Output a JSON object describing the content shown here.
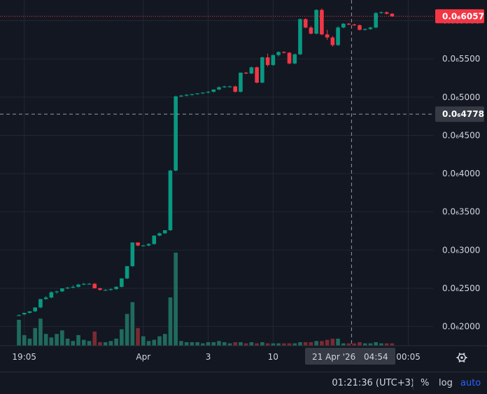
{
  "chart_data": {
    "type": "candlestick",
    "y_tick_labels": [
      "0.0₆2000",
      "0.0₆2500",
      "0.0₆3000",
      "0.0₆3500",
      "0.0₆4000",
      "0.0₆4500",
      "0.0₆5000",
      "0.0₆5500",
      "0.0₆6000"
    ],
    "y_tick_values": [
      0.2,
      0.25,
      0.3,
      0.35,
      0.4,
      0.45,
      0.5,
      0.55,
      0.6
    ],
    "ylim": [
      0.175,
      0.627
    ],
    "x_tick_labels": [
      "19:05",
      "Apr",
      "3",
      "10",
      "00:05"
    ],
    "x_tick_index": [
      1,
      23,
      35,
      47,
      72
    ],
    "candle_count": 70,
    "candles": [
      [
        0.215,
        0.216,
        0.214,
        0.215
      ],
      [
        0.216,
        0.218,
        0.215,
        0.218
      ],
      [
        0.218,
        0.22,
        0.217,
        0.22
      ],
      [
        0.22,
        0.225,
        0.219,
        0.225
      ],
      [
        0.225,
        0.236,
        0.224,
        0.236
      ],
      [
        0.236,
        0.24,
        0.235,
        0.238
      ],
      [
        0.238,
        0.246,
        0.237,
        0.245
      ],
      [
        0.245,
        0.247,
        0.243,
        0.246
      ],
      [
        0.246,
        0.25,
        0.245,
        0.25
      ],
      [
        0.25,
        0.252,
        0.249,
        0.251
      ],
      [
        0.251,
        0.254,
        0.25,
        0.252
      ],
      [
        0.252,
        0.256,
        0.251,
        0.255
      ],
      [
        0.255,
        0.257,
        0.254,
        0.256
      ],
      [
        0.256,
        0.257,
        0.255,
        0.256
      ],
      [
        0.256,
        0.257,
        0.25,
        0.25
      ],
      [
        0.25,
        0.251,
        0.247,
        0.248
      ],
      [
        0.248,
        0.249,
        0.247,
        0.248
      ],
      [
        0.248,
        0.25,
        0.247,
        0.249
      ],
      [
        0.249,
        0.253,
        0.248,
        0.252
      ],
      [
        0.252,
        0.263,
        0.251,
        0.263
      ],
      [
        0.263,
        0.279,
        0.262,
        0.279
      ],
      [
        0.279,
        0.31,
        0.278,
        0.31
      ],
      [
        0.31,
        0.31,
        0.305,
        0.306
      ],
      [
        0.306,
        0.307,
        0.305,
        0.306
      ],
      [
        0.306,
        0.309,
        0.305,
        0.308
      ],
      [
        0.308,
        0.319,
        0.307,
        0.319
      ],
      [
        0.319,
        0.323,
        0.318,
        0.322
      ],
      [
        0.322,
        0.326,
        0.321,
        0.326
      ],
      [
        0.326,
        0.405,
        0.325,
        0.404
      ],
      [
        0.404,
        0.502,
        0.403,
        0.501
      ],
      [
        0.501,
        0.503,
        0.5,
        0.502
      ],
      [
        0.502,
        0.504,
        0.501,
        0.503
      ],
      [
        0.503,
        0.504,
        0.502,
        0.504
      ],
      [
        0.504,
        0.505,
        0.503,
        0.505
      ],
      [
        0.505,
        0.506,
        0.504,
        0.506
      ],
      [
        0.506,
        0.508,
        0.505,
        0.507
      ],
      [
        0.507,
        0.51,
        0.506,
        0.51
      ],
      [
        0.51,
        0.514,
        0.509,
        0.513
      ],
      [
        0.513,
        0.515,
        0.512,
        0.514
      ],
      [
        0.514,
        0.515,
        0.513,
        0.514
      ],
      [
        0.514,
        0.515,
        0.506,
        0.507
      ],
      [
        0.507,
        0.532,
        0.506,
        0.532
      ],
      [
        0.532,
        0.533,
        0.53,
        0.531
      ],
      [
        0.531,
        0.54,
        0.53,
        0.539
      ],
      [
        0.539,
        0.54,
        0.518,
        0.519
      ],
      [
        0.519,
        0.553,
        0.518,
        0.552
      ],
      [
        0.552,
        0.557,
        0.54,
        0.542
      ],
      [
        0.542,
        0.556,
        0.541,
        0.555
      ],
      [
        0.555,
        0.56,
        0.553,
        0.559
      ],
      [
        0.559,
        0.56,
        0.557,
        0.558
      ],
      [
        0.558,
        0.559,
        0.543,
        0.544
      ],
      [
        0.544,
        0.557,
        0.543,
        0.556
      ],
      [
        0.556,
        0.603,
        0.555,
        0.602
      ],
      [
        0.602,
        0.603,
        0.59,
        0.591
      ],
      [
        0.591,
        0.593,
        0.582,
        0.583
      ],
      [
        0.583,
        0.615,
        0.582,
        0.614
      ],
      [
        0.614,
        0.616,
        0.581,
        0.582
      ],
      [
        0.582,
        0.588,
        0.575,
        0.578
      ],
      [
        0.578,
        0.58,
        0.566,
        0.568
      ],
      [
        0.568,
        0.593,
        0.567,
        0.591
      ],
      [
        0.591,
        0.597,
        0.59,
        0.596
      ],
      [
        0.596,
        0.597,
        0.594,
        0.595
      ],
      [
        0.595,
        0.596,
        0.593,
        0.594
      ],
      [
        0.594,
        0.595,
        0.587,
        0.588
      ],
      [
        0.588,
        0.59,
        0.587,
        0.589
      ],
      [
        0.589,
        0.592,
        0.588,
        0.591
      ],
      [
        0.591,
        0.611,
        0.59,
        0.61
      ],
      [
        0.61,
        0.612,
        0.609,
        0.611
      ],
      [
        0.611,
        0.612,
        0.608,
        0.609
      ],
      [
        0.609,
        0.61,
        0.605,
        0.6057
      ]
    ],
    "volumes": [
      22,
      9,
      6,
      15,
      23,
      10,
      7,
      10,
      13,
      6,
      4,
      9,
      5,
      4,
      12,
      3,
      3,
      4,
      6,
      14,
      27,
      37,
      15,
      8,
      4,
      5,
      8,
      10,
      41,
      79,
      4,
      3,
      3,
      3,
      2,
      3,
      3,
      4,
      3,
      2,
      3,
      3,
      2,
      3,
      2,
      3,
      2,
      2,
      2,
      2,
      2,
      2,
      3,
      3,
      3,
      4,
      4,
      5,
      6,
      6,
      2,
      2,
      2,
      3,
      2,
      2,
      3,
      2,
      2,
      2
    ],
    "colors": {
      "up": "#089981",
      "down": "#f23645",
      "vol_up": "#1f6b5e",
      "vol_down": "#7a2a33",
      "grid": "#232734",
      "bg": "#131722"
    },
    "last_price": {
      "value": 0.6057,
      "label": "0.0₆6057"
    },
    "crosshair": {
      "price_label": "0.0₆4778",
      "date_label": "21 Apr '26",
      "time_label": "04:54",
      "price": 0.4778,
      "index": 61.5
    }
  },
  "footer": {
    "clock": "01:21:36 (UTC+3)",
    "percent": "%",
    "log": "log",
    "auto": "auto"
  },
  "icons": {
    "settings": "gear-icon"
  }
}
